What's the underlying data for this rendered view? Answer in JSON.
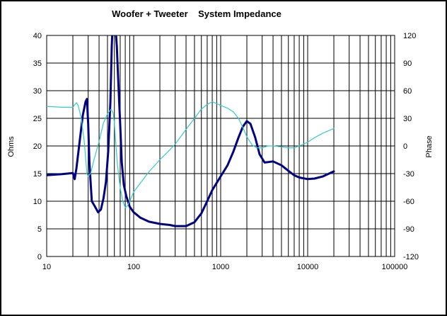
{
  "chart_data": {
    "type": "line",
    "title": "Woofer + Tweeter    System Impedance",
    "xlabel": "",
    "ylabel": "Ohms",
    "y2label": "Phase",
    "xscale": "log",
    "xlim": [
      10,
      100000
    ],
    "ylim": [
      0,
      40
    ],
    "y2lim": [
      -120,
      120
    ],
    "grid": true,
    "xticks": [
      "10",
      "100",
      "1000",
      "10000",
      "100000"
    ],
    "yticks": [
      "0",
      "5",
      "10",
      "15",
      "20",
      "25",
      "30",
      "35",
      "40"
    ],
    "y2ticks": [
      "-120",
      "-90",
      "-60",
      "-30",
      "0",
      "30",
      "60",
      "90",
      "120"
    ],
    "colors": {
      "impedance": "#000080",
      "phase": "#33cccc",
      "grid": "#000000"
    },
    "series": [
      {
        "axis": "left",
        "style": "thick",
        "points": [
          [
            10,
            14.7
          ],
          [
            15,
            14.9
          ],
          [
            20,
            15.1
          ],
          [
            21,
            14.0
          ],
          [
            22,
            16.0
          ],
          [
            24,
            21.0
          ],
          [
            26,
            25.5
          ],
          [
            28,
            28.0
          ],
          [
            29,
            28.5
          ],
          [
            30,
            24.0
          ],
          [
            31,
            17.0
          ],
          [
            33,
            10.0
          ],
          [
            36,
            9.0
          ],
          [
            39,
            8.0
          ],
          [
            42,
            8.5
          ],
          [
            45,
            10.5
          ],
          [
            48,
            13.5
          ],
          [
            51,
            19.0
          ],
          [
            54,
            28.0
          ],
          [
            56,
            38.0
          ],
          [
            57,
            41.0
          ],
          [
            62,
            41.0
          ],
          [
            64,
            38.0
          ],
          [
            66,
            33.0
          ],
          [
            70,
            24.0
          ],
          [
            73,
            17.0
          ],
          [
            77,
            13.0
          ],
          [
            82,
            11.0
          ],
          [
            90,
            9.0
          ],
          [
            100,
            8.0
          ],
          [
            120,
            7.0
          ],
          [
            150,
            6.3
          ],
          [
            200,
            5.9
          ],
          [
            260,
            5.7
          ],
          [
            300,
            5.5
          ],
          [
            400,
            5.5
          ],
          [
            500,
            6.2
          ],
          [
            600,
            7.8
          ],
          [
            700,
            10.0
          ],
          [
            800,
            12.0
          ],
          [
            1000,
            14.5
          ],
          [
            1200,
            16.5
          ],
          [
            1400,
            19.0
          ],
          [
            1600,
            21.5
          ],
          [
            1800,
            23.5
          ],
          [
            2000,
            24.5
          ],
          [
            2200,
            24.0
          ],
          [
            2500,
            21.5
          ],
          [
            2800,
            18.5
          ],
          [
            3200,
            17.0
          ],
          [
            4000,
            17.2
          ],
          [
            5000,
            16.5
          ],
          [
            6000,
            15.5
          ],
          [
            7000,
            14.7
          ],
          [
            8000,
            14.3
          ],
          [
            10000,
            14.0
          ],
          [
            12000,
            14.1
          ],
          [
            15000,
            14.5
          ],
          [
            20000,
            15.4
          ]
        ]
      },
      {
        "axis": "right",
        "style": "thin",
        "points": [
          [
            10,
            43
          ],
          [
            15,
            42
          ],
          [
            20,
            42
          ],
          [
            22,
            47
          ],
          [
            23,
            44
          ],
          [
            25,
            30
          ],
          [
            27,
            5
          ],
          [
            29,
            -30
          ],
          [
            30,
            -33
          ],
          [
            32,
            -30
          ],
          [
            35,
            -15
          ],
          [
            40,
            5
          ],
          [
            45,
            25
          ],
          [
            50,
            35
          ],
          [
            55,
            40
          ],
          [
            58,
            36
          ],
          [
            60,
            25
          ],
          [
            62,
            5
          ],
          [
            65,
            -20
          ],
          [
            70,
            -45
          ],
          [
            75,
            -60
          ],
          [
            80,
            -67
          ],
          [
            85,
            -65
          ],
          [
            90,
            -60
          ],
          [
            100,
            -50
          ],
          [
            120,
            -40
          ],
          [
            150,
            -28
          ],
          [
            200,
            -15
          ],
          [
            250,
            -6
          ],
          [
            300,
            2
          ],
          [
            400,
            18
          ],
          [
            500,
            30
          ],
          [
            600,
            40
          ],
          [
            700,
            45
          ],
          [
            800,
            48
          ],
          [
            900,
            46
          ],
          [
            1000,
            44
          ],
          [
            1200,
            41
          ],
          [
            1400,
            37
          ],
          [
            1600,
            30
          ],
          [
            1800,
            20
          ],
          [
            2000,
            10
          ],
          [
            2300,
            1
          ],
          [
            2600,
            -2
          ],
          [
            3000,
            -2
          ],
          [
            3500,
            0
          ],
          [
            4000,
            0
          ],
          [
            5000,
            -1
          ],
          [
            6000,
            -2
          ],
          [
            7000,
            -2
          ],
          [
            8000,
            0
          ],
          [
            10000,
            4
          ],
          [
            12000,
            9
          ],
          [
            15000,
            14
          ],
          [
            20000,
            19
          ]
        ]
      }
    ]
  }
}
